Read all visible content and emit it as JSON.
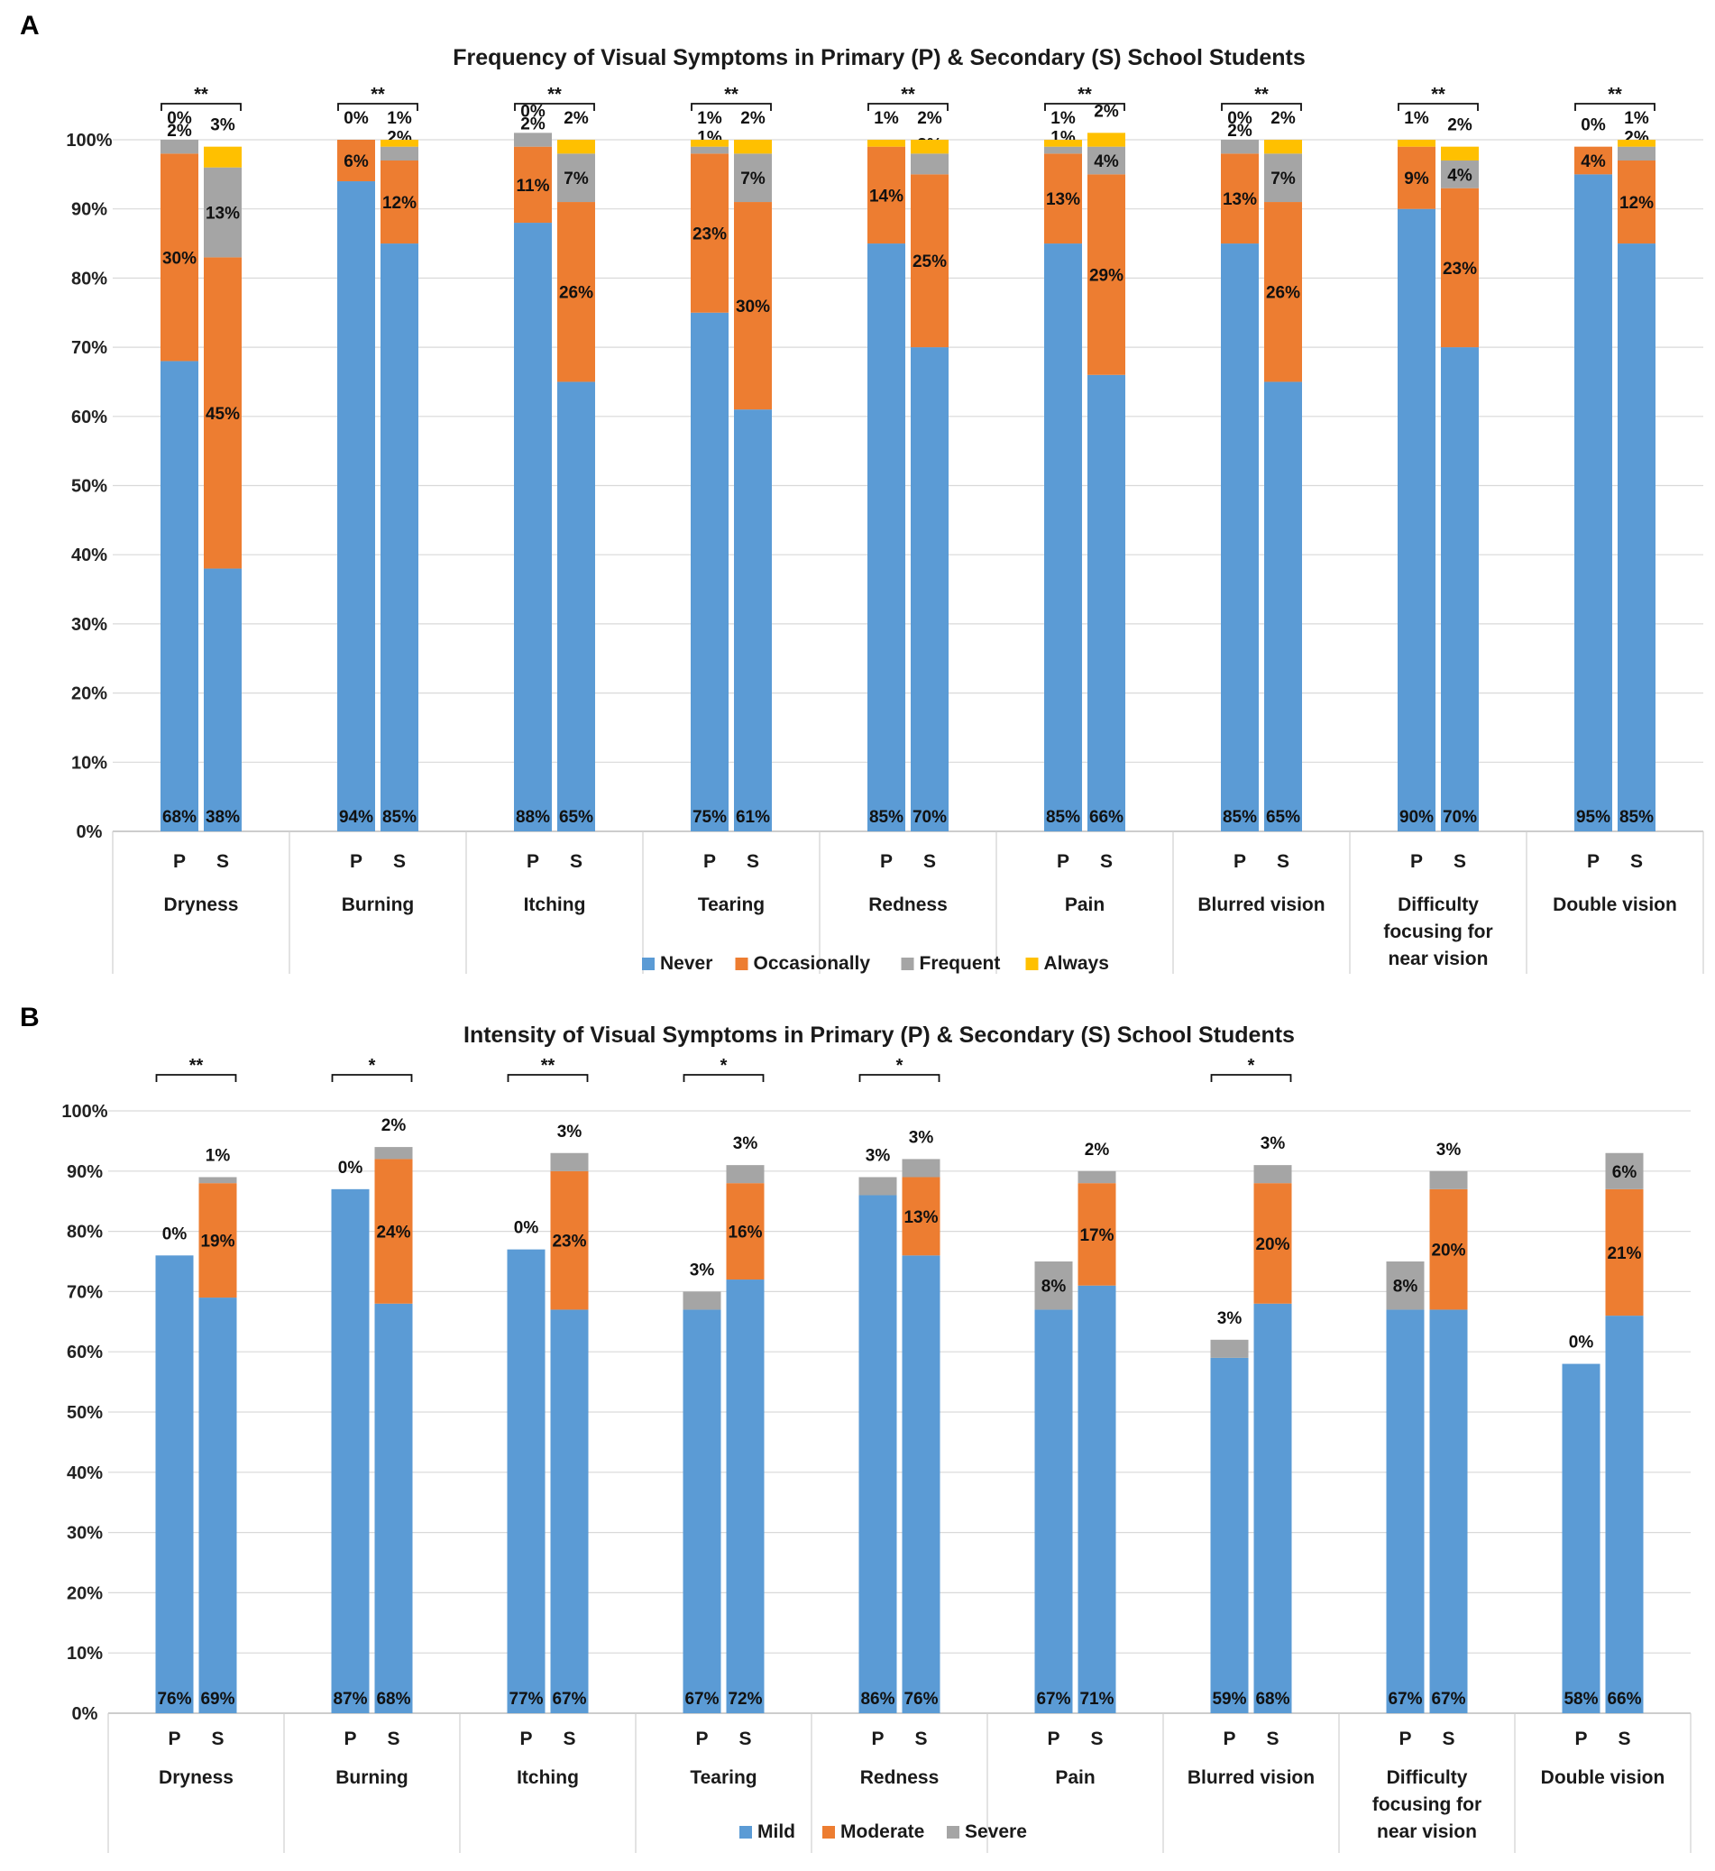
{
  "chart_data": [
    {
      "type": "bar",
      "stacked": true,
      "panel_label": "A",
      "title": "Frequency of Visual Symptoms in Primary (P) & Secondary (S) School Students",
      "ylim": [
        0,
        100
      ],
      "yticks": [
        "0%",
        "10%",
        "20%",
        "30%",
        "40%",
        "50%",
        "60%",
        "70%",
        "80%",
        "90%",
        "100%"
      ],
      "categories": [
        "Dryness",
        "Burning",
        "Itching",
        "Tearing",
        "Redness",
        "Pain",
        "Blurred vision",
        "Difficulty focusing for near vision",
        "Double vision"
      ],
      "groups": [
        "P",
        "S"
      ],
      "significance": [
        "**",
        "**",
        "**",
        "**",
        "**",
        "**",
        "**",
        "**",
        "**"
      ],
      "legend_position": "bottom",
      "series": [
        {
          "name": "Never",
          "color": "#5B9BD5",
          "P": [
            68,
            94,
            88,
            75,
            85,
            85,
            85,
            90,
            95
          ],
          "S": [
            38,
            85,
            65,
            61,
            70,
            66,
            65,
            70,
            85
          ]
        },
        {
          "name": "Occasionally",
          "color": "#ED7D31",
          "P": [
            30,
            6,
            11,
            23,
            14,
            13,
            13,
            9,
            4
          ],
          "S": [
            45,
            12,
            26,
            30,
            25,
            29,
            26,
            23,
            12
          ]
        },
        {
          "name": "Frequent",
          "color": "#A5A5A5",
          "P": [
            2,
            0,
            2,
            1,
            0,
            1,
            2,
            0,
            0
          ],
          "S": [
            13,
            2,
            7,
            7,
            3,
            4,
            7,
            4,
            2
          ]
        },
        {
          "name": "Always",
          "color": "#FFC000",
          "P": [
            0,
            0,
            0,
            1,
            1,
            1,
            0,
            1,
            0
          ],
          "S": [
            3,
            1,
            2,
            2,
            2,
            2,
            2,
            2,
            1
          ]
        }
      ]
    },
    {
      "type": "bar",
      "stacked": true,
      "panel_label": "B",
      "title": "Intensity of Visual Symptoms in Primary (P) & Secondary (S) School Students",
      "ylim": [
        0,
        100
      ],
      "yticks": [
        "0%",
        "10%",
        "20%",
        "30%",
        "40%",
        "50%",
        "60%",
        "70%",
        "80%",
        "90%",
        "100%"
      ],
      "categories": [
        "Dryness",
        "Burning",
        "Itching",
        "Tearing",
        "Redness",
        "Pain",
        "Blurred vision",
        "Difficulty focusing for near vision",
        "Double vision"
      ],
      "groups": [
        "P",
        "S"
      ],
      "significance": [
        "**",
        "*",
        "**",
        "*",
        "*",
        "",
        "*",
        "",
        ""
      ],
      "legend_position": "bottom",
      "series": [
        {
          "name": "Mild",
          "color": "#5B9BD5",
          "P": [
            76,
            87,
            77,
            67,
            86,
            67,
            59,
            67,
            58
          ],
          "S": [
            69,
            68,
            67,
            72,
            76,
            71,
            68,
            67,
            66
          ]
        },
        {
          "name": "Moderate",
          "color": "#ED7D31",
          "P": [
            0,
            0,
            0,
            0,
            0,
            0,
            0,
            0,
            0
          ],
          "S": [
            19,
            24,
            23,
            16,
            13,
            17,
            20,
            20,
            21
          ]
        },
        {
          "name": "Severe",
          "color": "#A5A5A5",
          "P": [
            0,
            0,
            0,
            3,
            3,
            8,
            3,
            8,
            0
          ],
          "S": [
            1,
            2,
            3,
            3,
            3,
            2,
            3,
            3,
            6
          ]
        }
      ]
    }
  ]
}
